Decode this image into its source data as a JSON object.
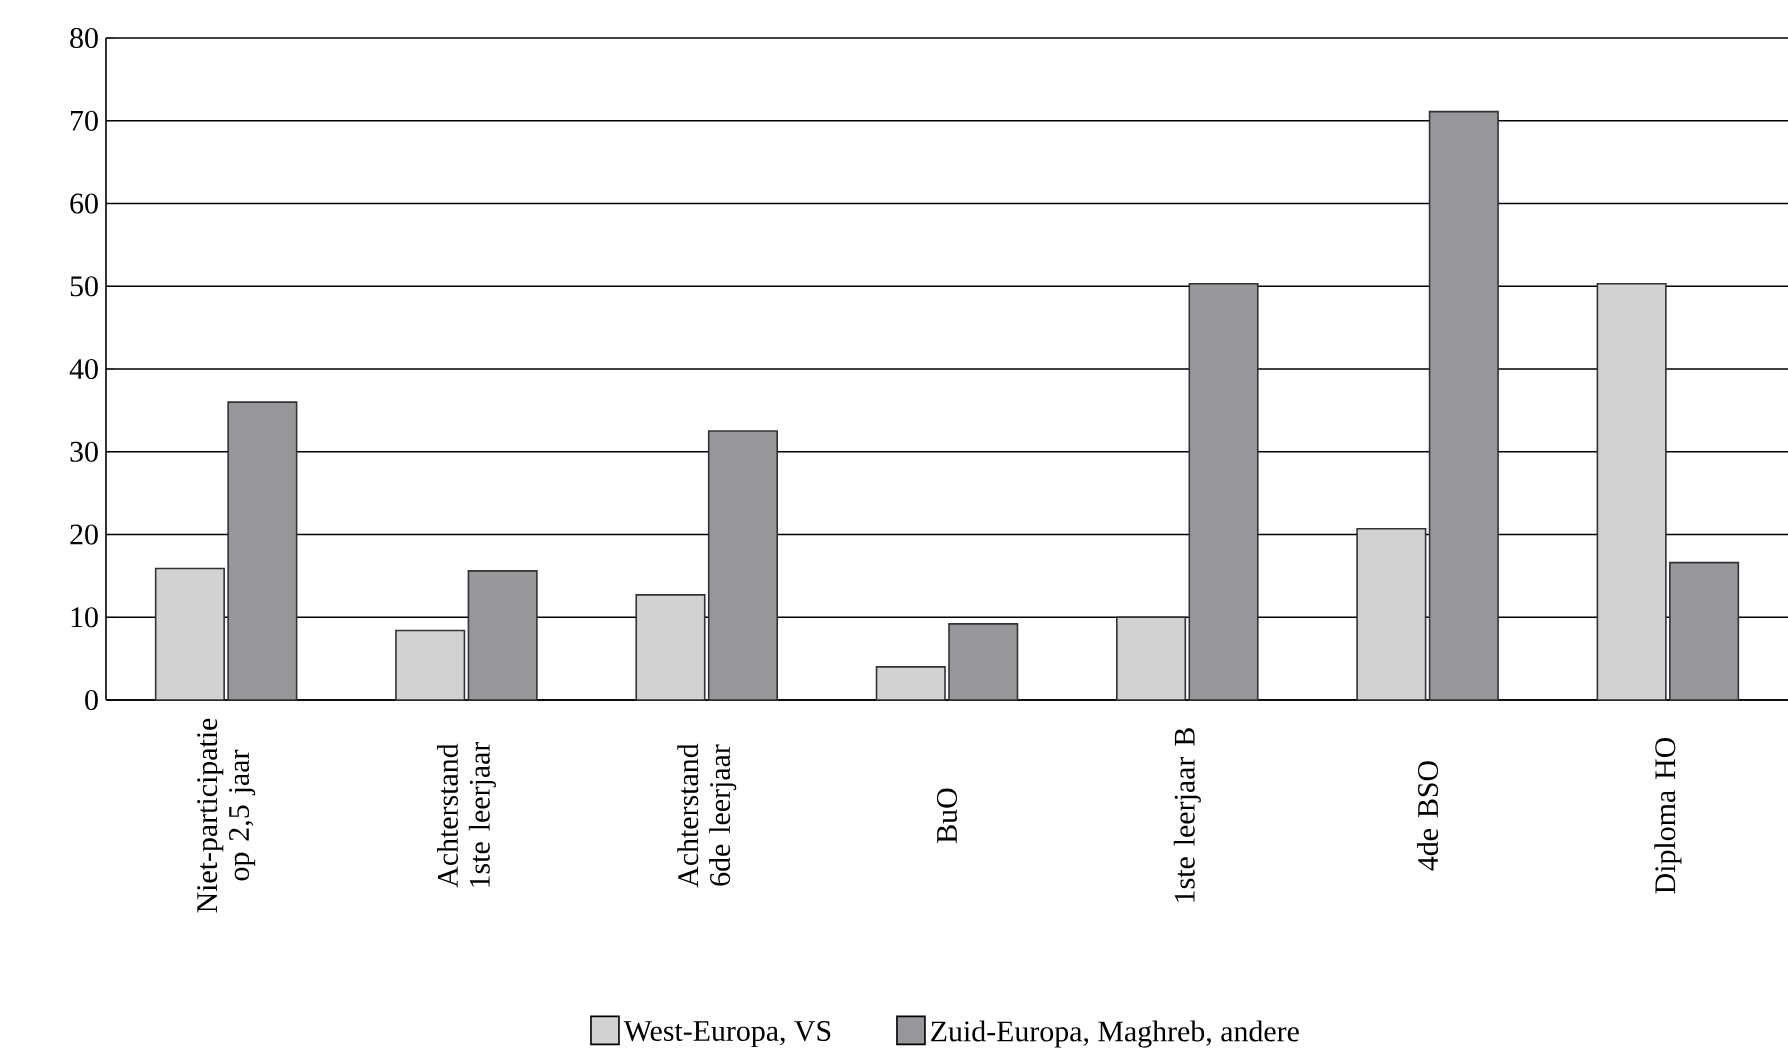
{
  "chart_data": {
    "type": "bar",
    "categories": [
      "Niet-participatie op 2,5 jaar",
      "Achterstand 1ste leerjaar",
      "Achterstand 6de leerjaar",
      "BuO",
      "1ste leerjaar B",
      "4de BSO",
      "Diploma HO"
    ],
    "series": [
      {
        "name": "West-Europa, VS",
        "color": "#d1d2d4",
        "values": [
          15.9,
          8.4,
          12.7,
          4.0,
          10.0,
          20.7,
          50.3
        ]
      },
      {
        "name": "Zuid-Europa, Maghreb, andere",
        "color": "#96979b",
        "values": [
          36.0,
          15.6,
          32.5,
          9.2,
          50.3,
          71.1,
          16.6
        ]
      }
    ],
    "ylim": [
      0,
      80
    ],
    "yticks": [
      0,
      10,
      20,
      30,
      40,
      50,
      60,
      70,
      80
    ],
    "grid": "y",
    "legend": "bottom"
  }
}
